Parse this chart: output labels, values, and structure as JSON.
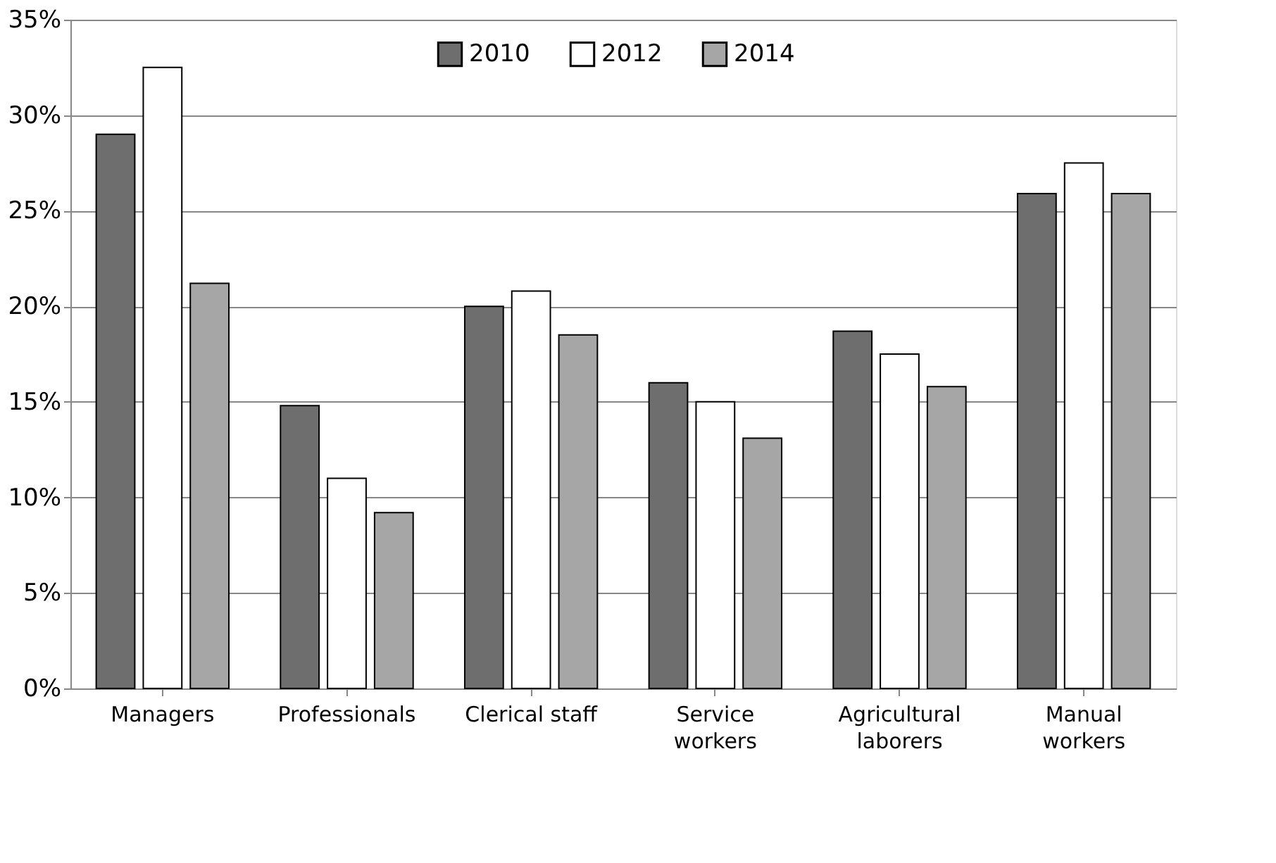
{
  "chart_data": {
    "type": "bar",
    "categories": [
      "Managers",
      "Professionals",
      "Clerical staff",
      "Service\nworkers",
      "Agricultural\nlaborers",
      "Manual\nworkers"
    ],
    "series": [
      {
        "name": "2010",
        "color": "#6e6e6e",
        "values": [
          29.0,
          14.8,
          20.0,
          16.0,
          18.7,
          25.9
        ]
      },
      {
        "name": "2012",
        "color": "#ffffff",
        "values": [
          32.5,
          11.0,
          20.8,
          15.0,
          17.5,
          27.5
        ]
      },
      {
        "name": "2014",
        "color": "#a6a6a6",
        "values": [
          21.2,
          9.2,
          18.5,
          13.1,
          15.8,
          25.9
        ]
      }
    ],
    "ylim": [
      0,
      35
    ],
    "yticks": [
      {
        "value": 0,
        "label": "0%"
      },
      {
        "value": 5,
        "label": "5%"
      },
      {
        "value": 10,
        "label": "10%"
      },
      {
        "value": 15,
        "label": "15%"
      },
      {
        "value": 20,
        "label": "20%"
      },
      {
        "value": 25,
        "label": "25%"
      },
      {
        "value": 30,
        "label": "30%"
      },
      {
        "value": 35,
        "label": "35%"
      }
    ],
    "grid": "y",
    "legend": "top"
  }
}
